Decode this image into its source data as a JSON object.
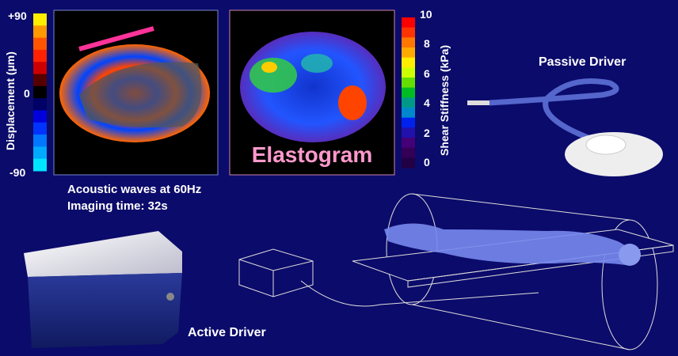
{
  "displacement_scale": {
    "label": "Displacement (µm)",
    "ticks": [
      "+90",
      "0",
      "-90"
    ],
    "colors": [
      "#ffee00",
      "#ff9900",
      "#ff5500",
      "#ff2200",
      "#cc0000",
      "#550000",
      "#000000",
      "#000066",
      "#0000dd",
      "#0033ff",
      "#0077ff",
      "#00aaff",
      "#00e5ff"
    ]
  },
  "wave_image": {
    "caption_line1": "Acoustic waves at 60Hz",
    "caption_line2": "Imaging time: 32s",
    "driver_marker_color": "#ff3399"
  },
  "elastogram": {
    "label": "Elastogram",
    "label_color": "#ff99cc"
  },
  "stiffness_scale": {
    "label": "Shear Stiffness (kPa)",
    "ticks": [
      "10",
      "8",
      "6",
      "4",
      "2",
      "0"
    ],
    "colors": [
      "#ff0000",
      "#ff3300",
      "#ff7700",
      "#ffaa00",
      "#ffee00",
      "#ccff00",
      "#66dd00",
      "#00bb22",
      "#009988",
      "#0088cc",
      "#0022ee",
      "#2211aa",
      "#440077",
      "#330055",
      "#220044"
    ]
  },
  "passive_driver": {
    "label": "Passive Driver"
  },
  "active_driver": {
    "label": "Active Driver"
  },
  "background_color": "#0b0b6b"
}
